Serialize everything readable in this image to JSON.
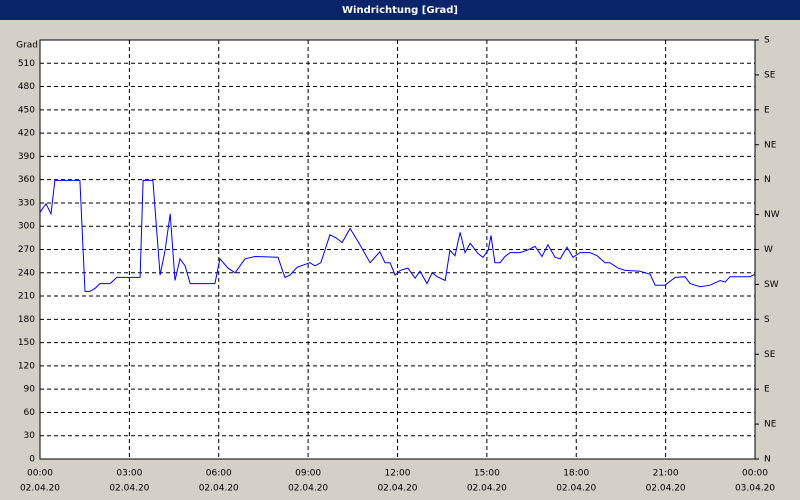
{
  "chart_data": {
    "type": "line",
    "title": "Windrichtung [Grad]",
    "y_label": "Grad",
    "color": "#0000ff",
    "grid": true,
    "x": [
      0.0,
      0.2,
      0.37,
      0.5,
      1.34,
      1.51,
      1.68,
      1.85,
      2.01,
      2.35,
      2.58,
      3.36,
      3.46,
      3.79,
      4.03,
      4.2,
      4.37,
      4.53,
      4.7,
      4.87,
      5.04,
      5.87,
      6.04,
      6.31,
      6.55,
      6.88,
      7.22,
      7.99,
      8.22,
      8.39,
      8.63,
      9.06,
      9.23,
      9.43,
      9.73,
      9.94,
      10.14,
      10.41,
      10.68,
      11.08,
      11.41,
      11.58,
      11.75,
      11.92,
      12.09,
      12.35,
      12.59,
      12.76,
      12.99,
      13.16,
      13.33,
      13.6,
      13.76,
      13.93,
      14.1,
      14.27,
      14.44,
      14.7,
      14.87,
      15.04,
      15.14,
      15.27,
      15.44,
      15.61,
      15.78,
      16.11,
      16.35,
      16.62,
      16.85,
      17.05,
      17.29,
      17.46,
      17.69,
      17.89,
      18.13,
      18.46,
      18.7,
      18.97,
      19.13,
      19.4,
      19.64,
      20.14,
      20.48,
      20.65,
      20.98,
      21.32,
      21.65,
      21.82,
      22.16,
      22.49,
      22.83,
      23.0,
      23.16,
      23.5,
      23.83,
      24.0
    ],
    "values": [
      318,
      329,
      316,
      359,
      359,
      216,
      216,
      220,
      226,
      226,
      234,
      234,
      359,
      359,
      237,
      269,
      316,
      230,
      258,
      249,
      226,
      226,
      258,
      246,
      240,
      258,
      261,
      260,
      234,
      237,
      247,
      253,
      249,
      253,
      289,
      285,
      279,
      297,
      280,
      253,
      267,
      253,
      253,
      237,
      243,
      246,
      233,
      242,
      226,
      240,
      235,
      230,
      269,
      262,
      292,
      266,
      278,
      265,
      260,
      269,
      288,
      253,
      253,
      261,
      266,
      266,
      269,
      274,
      261,
      276,
      260,
      258,
      273,
      260,
      266,
      266,
      262,
      253,
      253,
      246,
      243,
      242,
      238,
      224,
      224,
      234,
      235,
      226,
      222,
      224,
      230,
      228,
      235,
      235,
      235,
      238
    ],
    "xlim": [
      0,
      24
    ],
    "xticks": [
      {
        "value": 0,
        "label": "00:00"
      },
      {
        "value": 3,
        "label": "03:00"
      },
      {
        "value": 6,
        "label": "06:00"
      },
      {
        "value": 9,
        "label": "09:00"
      },
      {
        "value": 12,
        "label": "12:00"
      },
      {
        "value": 15,
        "label": "15:00"
      },
      {
        "value": 18,
        "label": "18:00"
      },
      {
        "value": 21,
        "label": "21:00"
      },
      {
        "value": 24,
        "label": "00:00"
      }
    ],
    "xtick_dates": [
      "02.04.20",
      "02.04.20",
      "02.04.20",
      "02.04.20",
      "02.04.20",
      "02.04.20",
      "02.04.20",
      "02.04.20",
      "03.04.20"
    ],
    "ylim": [
      0,
      540
    ],
    "yticks": [
      0,
      30,
      60,
      90,
      120,
      150,
      180,
      210,
      240,
      270,
      300,
      330,
      360,
      390,
      420,
      450,
      480,
      510
    ],
    "y2lim": [
      0,
      540
    ],
    "y2ticks": [
      {
        "value": 0,
        "label": "N"
      },
      {
        "value": 45,
        "label": "NE"
      },
      {
        "value": 90,
        "label": "E"
      },
      {
        "value": 135,
        "label": "SE"
      },
      {
        "value": 180,
        "label": "S"
      },
      {
        "value": 225,
        "label": "SW"
      },
      {
        "value": 270,
        "label": "W"
      },
      {
        "value": 315,
        "label": "NW"
      },
      {
        "value": 360,
        "label": "N"
      },
      {
        "value": 405,
        "label": "NE"
      },
      {
        "value": 450,
        "label": "E"
      },
      {
        "value": 495,
        "label": "SE"
      },
      {
        "value": 540,
        "label": "S"
      }
    ]
  }
}
